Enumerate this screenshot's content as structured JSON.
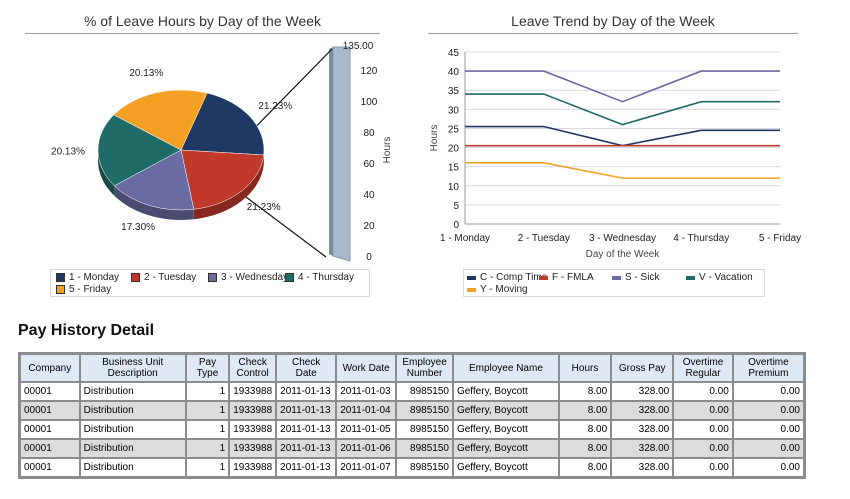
{
  "pie_chart": {
    "title": "% of Leave Hours by Day of the Week",
    "scale_axis": {
      "label": "Hours",
      "max_label": "135.00",
      "ticks": [
        "0",
        "20",
        "40",
        "60",
        "80",
        "100",
        "120"
      ]
    },
    "legend": [
      "1 - Monday",
      "2 - Tuesday",
      "3 - Wednesday",
      "4 - Thursday",
      "5 - Friday"
    ]
  },
  "line_chart": {
    "title": "Leave Trend by Day of the Week",
    "legend": [
      "C - Comp Time",
      "F - FMLA",
      "S - Sick",
      "V - Vacation",
      "Y - Moving"
    ]
  },
  "chart_data": [
    {
      "type": "pie",
      "title": "% of Leave Hours by Day of the Week",
      "categories": [
        "1 - Monday",
        "2 - Tuesday",
        "3 - Wednesday",
        "4 - Thursday",
        "5 - Friday"
      ],
      "values": [
        21.23,
        21.23,
        17.3,
        20.13,
        20.13
      ],
      "labels": [
        "21.23%",
        "21.23%",
        "17.30%",
        "20.13%",
        "20.13%"
      ],
      "colors": [
        "#1f3864",
        "#c0392b",
        "#6b6ba3",
        "#1f6b68",
        "#f4a025"
      ],
      "legend": "bottom"
    },
    {
      "type": "line",
      "title": "Leave Trend by Day of the Week",
      "xlabel": "Day of the Week",
      "ylabel": "Hours",
      "categories": [
        "1 - Monday",
        "2 - Tuesday",
        "3 - Wednesday",
        "4 - Thursday",
        "5 - Friday"
      ],
      "ylim": [
        0,
        45
      ],
      "yticks": [
        0,
        5,
        10,
        15,
        20,
        25,
        30,
        35,
        40,
        45
      ],
      "grid": true,
      "legend": "bottom",
      "series": [
        {
          "name": "C - Comp Time",
          "color": "#1f3864",
          "values": [
            25.5,
            25.5,
            20.5,
            24.5,
            24.5
          ]
        },
        {
          "name": "F - FMLA",
          "color": "#c0392b",
          "values": [
            20.5,
            20.5,
            20.5,
            20.5,
            20.5
          ]
        },
        {
          "name": "S - Sick",
          "color": "#6b6ba3",
          "values": [
            40,
            40,
            32,
            40,
            40
          ]
        },
        {
          "name": "V - Vacation",
          "color": "#1f6b68",
          "values": [
            34,
            34,
            26,
            32,
            32
          ]
        },
        {
          "name": "Y - Moving",
          "color": "#f4a025",
          "values": [
            16,
            16,
            12,
            12,
            12
          ]
        }
      ]
    }
  ],
  "pay_history": {
    "title": "Pay History Detail",
    "columns": [
      "Company",
      "Business Unit Description",
      "Pay Type",
      "Check Control",
      "Check Date",
      "Work Date",
      "Employee Number",
      "Employee Name",
      "Hours",
      "Gross Pay",
      "Overtime Regular",
      "Overtime Premium"
    ],
    "rows": [
      [
        "00001",
        "Distribution",
        "1",
        "1933988",
        "2011-01-13",
        "2011-01-03",
        "8985150",
        "Geffery, Boycott",
        "8.00",
        "328.00",
        "0.00",
        "0.00"
      ],
      [
        "00001",
        "Distribution",
        "1",
        "1933988",
        "2011-01-13",
        "2011-01-04",
        "8985150",
        "Geffery, Boycott",
        "8.00",
        "328.00",
        "0.00",
        "0.00"
      ],
      [
        "00001",
        "Distribution",
        "1",
        "1933988",
        "2011-01-13",
        "2011-01-05",
        "8985150",
        "Geffery, Boycott",
        "8.00",
        "328.00",
        "0.00",
        "0.00"
      ],
      [
        "00001",
        "Distribution",
        "1",
        "1933988",
        "2011-01-13",
        "2011-01-06",
        "8985150",
        "Geffery, Boycott",
        "8.00",
        "328.00",
        "0.00",
        "0.00"
      ],
      [
        "00001",
        "Distribution",
        "1",
        "1933988",
        "2011-01-13",
        "2011-01-07",
        "8985150",
        "Geffery, Boycott",
        "8.00",
        "328.00",
        "0.00",
        "0.00"
      ]
    ]
  }
}
